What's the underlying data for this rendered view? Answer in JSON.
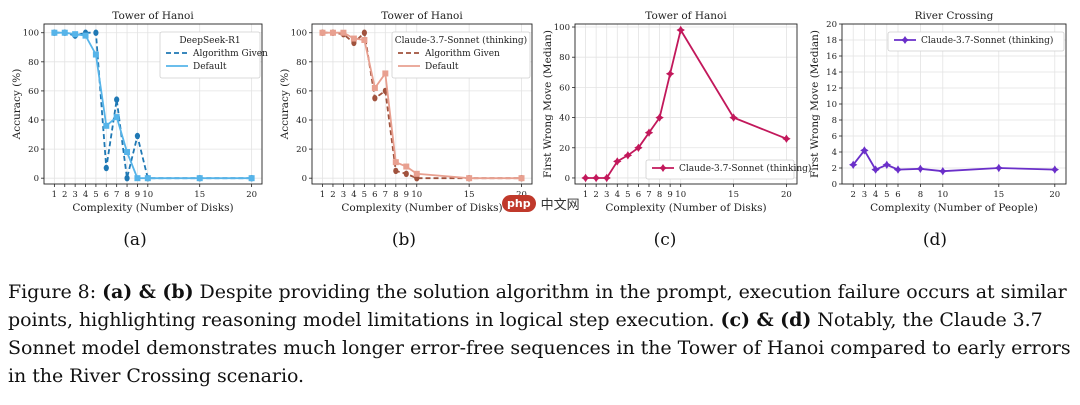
{
  "charts": [
    {
      "type": "line",
      "title": "Tower of Hanoi",
      "xlabel": "Complexity (Number of Disks)",
      "ylabel": "Accuracy (%)",
      "xticks": [
        1,
        2,
        3,
        4,
        5,
        6,
        7,
        8,
        9,
        10,
        15,
        20
      ],
      "yticks": [
        0,
        20,
        40,
        60,
        80,
        100
      ],
      "ylim": [
        -4,
        106
      ],
      "legend_title": "DeepSeek-R1",
      "sublabel": "(a)",
      "series": [
        {
          "name": "Algorithm Given",
          "color": "#1f78b4",
          "dash": true,
          "x": [
            1,
            2,
            3,
            4,
            5,
            6,
            7,
            8,
            9,
            10,
            15,
            20
          ],
          "y": [
            100,
            100,
            98,
            100,
            100,
            7,
            54,
            0,
            29,
            0,
            0,
            0
          ]
        },
        {
          "name": "Default",
          "color": "#56b4e9",
          "dash": false,
          "x": [
            1,
            2,
            3,
            4,
            5,
            6,
            7,
            8,
            9,
            10,
            15,
            20
          ],
          "y": [
            100,
            100,
            99,
            98,
            85,
            36,
            42,
            18,
            0,
            0,
            0,
            0
          ]
        }
      ]
    },
    {
      "type": "line",
      "title": "Tower of Hanoi",
      "xlabel": "Complexity (Number of Disks)",
      "ylabel": "Accuracy (%)",
      "xticks": [
        1,
        2,
        3,
        4,
        5,
        6,
        7,
        8,
        9,
        10,
        15,
        20
      ],
      "yticks": [
        0,
        20,
        40,
        60,
        80,
        100
      ],
      "ylim": [
        -4,
        106
      ],
      "legend_title": "Claude-3.7-Sonnet (thinking)",
      "sublabel": "(b)",
      "series": [
        {
          "name": "Algorithm Given",
          "color": "#a0523d",
          "dash": true,
          "x": [
            1,
            2,
            3,
            4,
            5,
            6,
            7,
            8,
            9,
            10,
            15,
            20
          ],
          "y": [
            100,
            100,
            99,
            93,
            100,
            55,
            60,
            5,
            3,
            0,
            0,
            0
          ]
        },
        {
          "name": "Default",
          "color": "#e8a090",
          "dash": false,
          "x": [
            1,
            2,
            3,
            4,
            5,
            6,
            7,
            8,
            9,
            10,
            15,
            20
          ],
          "y": [
            100,
            100,
            100,
            96,
            95,
            62,
            72,
            11,
            8,
            3,
            0,
            0
          ]
        }
      ]
    },
    {
      "type": "line",
      "title": "Tower of Hanoi",
      "xlabel": "Complexity (Number of Disks)",
      "ylabel": "First Wrong Move (Median)",
      "xticks": [
        1,
        2,
        3,
        4,
        5,
        6,
        7,
        8,
        9,
        10,
        15,
        20
      ],
      "yticks": [
        0,
        20,
        40,
        60,
        80,
        100
      ],
      "ylim": [
        -4,
        102
      ],
      "legend_title": "",
      "sublabel": "(c)",
      "series": [
        {
          "name": "Claude-3.7-Sonnet (thinking)",
          "color": "#c2185b",
          "dash": false,
          "x": [
            1,
            2,
            3,
            4,
            5,
            6,
            7,
            8,
            9,
            10,
            15,
            20
          ],
          "y": [
            0,
            0,
            0,
            11,
            15,
            20,
            30,
            40,
            69,
            98,
            40,
            26
          ]
        }
      ]
    },
    {
      "type": "line",
      "title": "River Crossing",
      "xlabel": "Complexity (Number of People)",
      "ylabel": "First Wrong Move (Median)",
      "xticks": [
        2,
        3,
        4,
        5,
        6,
        8,
        10,
        15,
        20
      ],
      "yticks": [
        0,
        2,
        4,
        6,
        8,
        10,
        12,
        14,
        16,
        18,
        20
      ],
      "ylim": [
        0,
        20
      ],
      "legend_title": "",
      "sublabel": "(d)",
      "series": [
        {
          "name": "Claude-3.7-Sonnet (thinking)",
          "color": "#6a2fc9",
          "dash": false,
          "x": [
            2,
            3,
            4,
            5,
            6,
            8,
            10,
            15,
            20
          ],
          "y": [
            2.4,
            4.2,
            1.8,
            2.4,
            1.8,
            1.9,
            1.6,
            2.0,
            1.8
          ]
        }
      ]
    }
  ],
  "caption": {
    "p1": "Figure 8: ",
    "b1": "(a) & (b)",
    "p2": " Despite providing the solution algorithm in the prompt, execution failure occurs at similar points, highlighting reasoning model limitations in logical step execution. ",
    "b2": "(c) & (d)",
    "p3": " Notably, the Claude 3.7 Sonnet model demonstrates much longer error-free sequences in the Tower of Hanoi compared to early errors in the River Crossing scenario."
  },
  "watermark": {
    "logo": "php",
    "text": "中文网"
  }
}
